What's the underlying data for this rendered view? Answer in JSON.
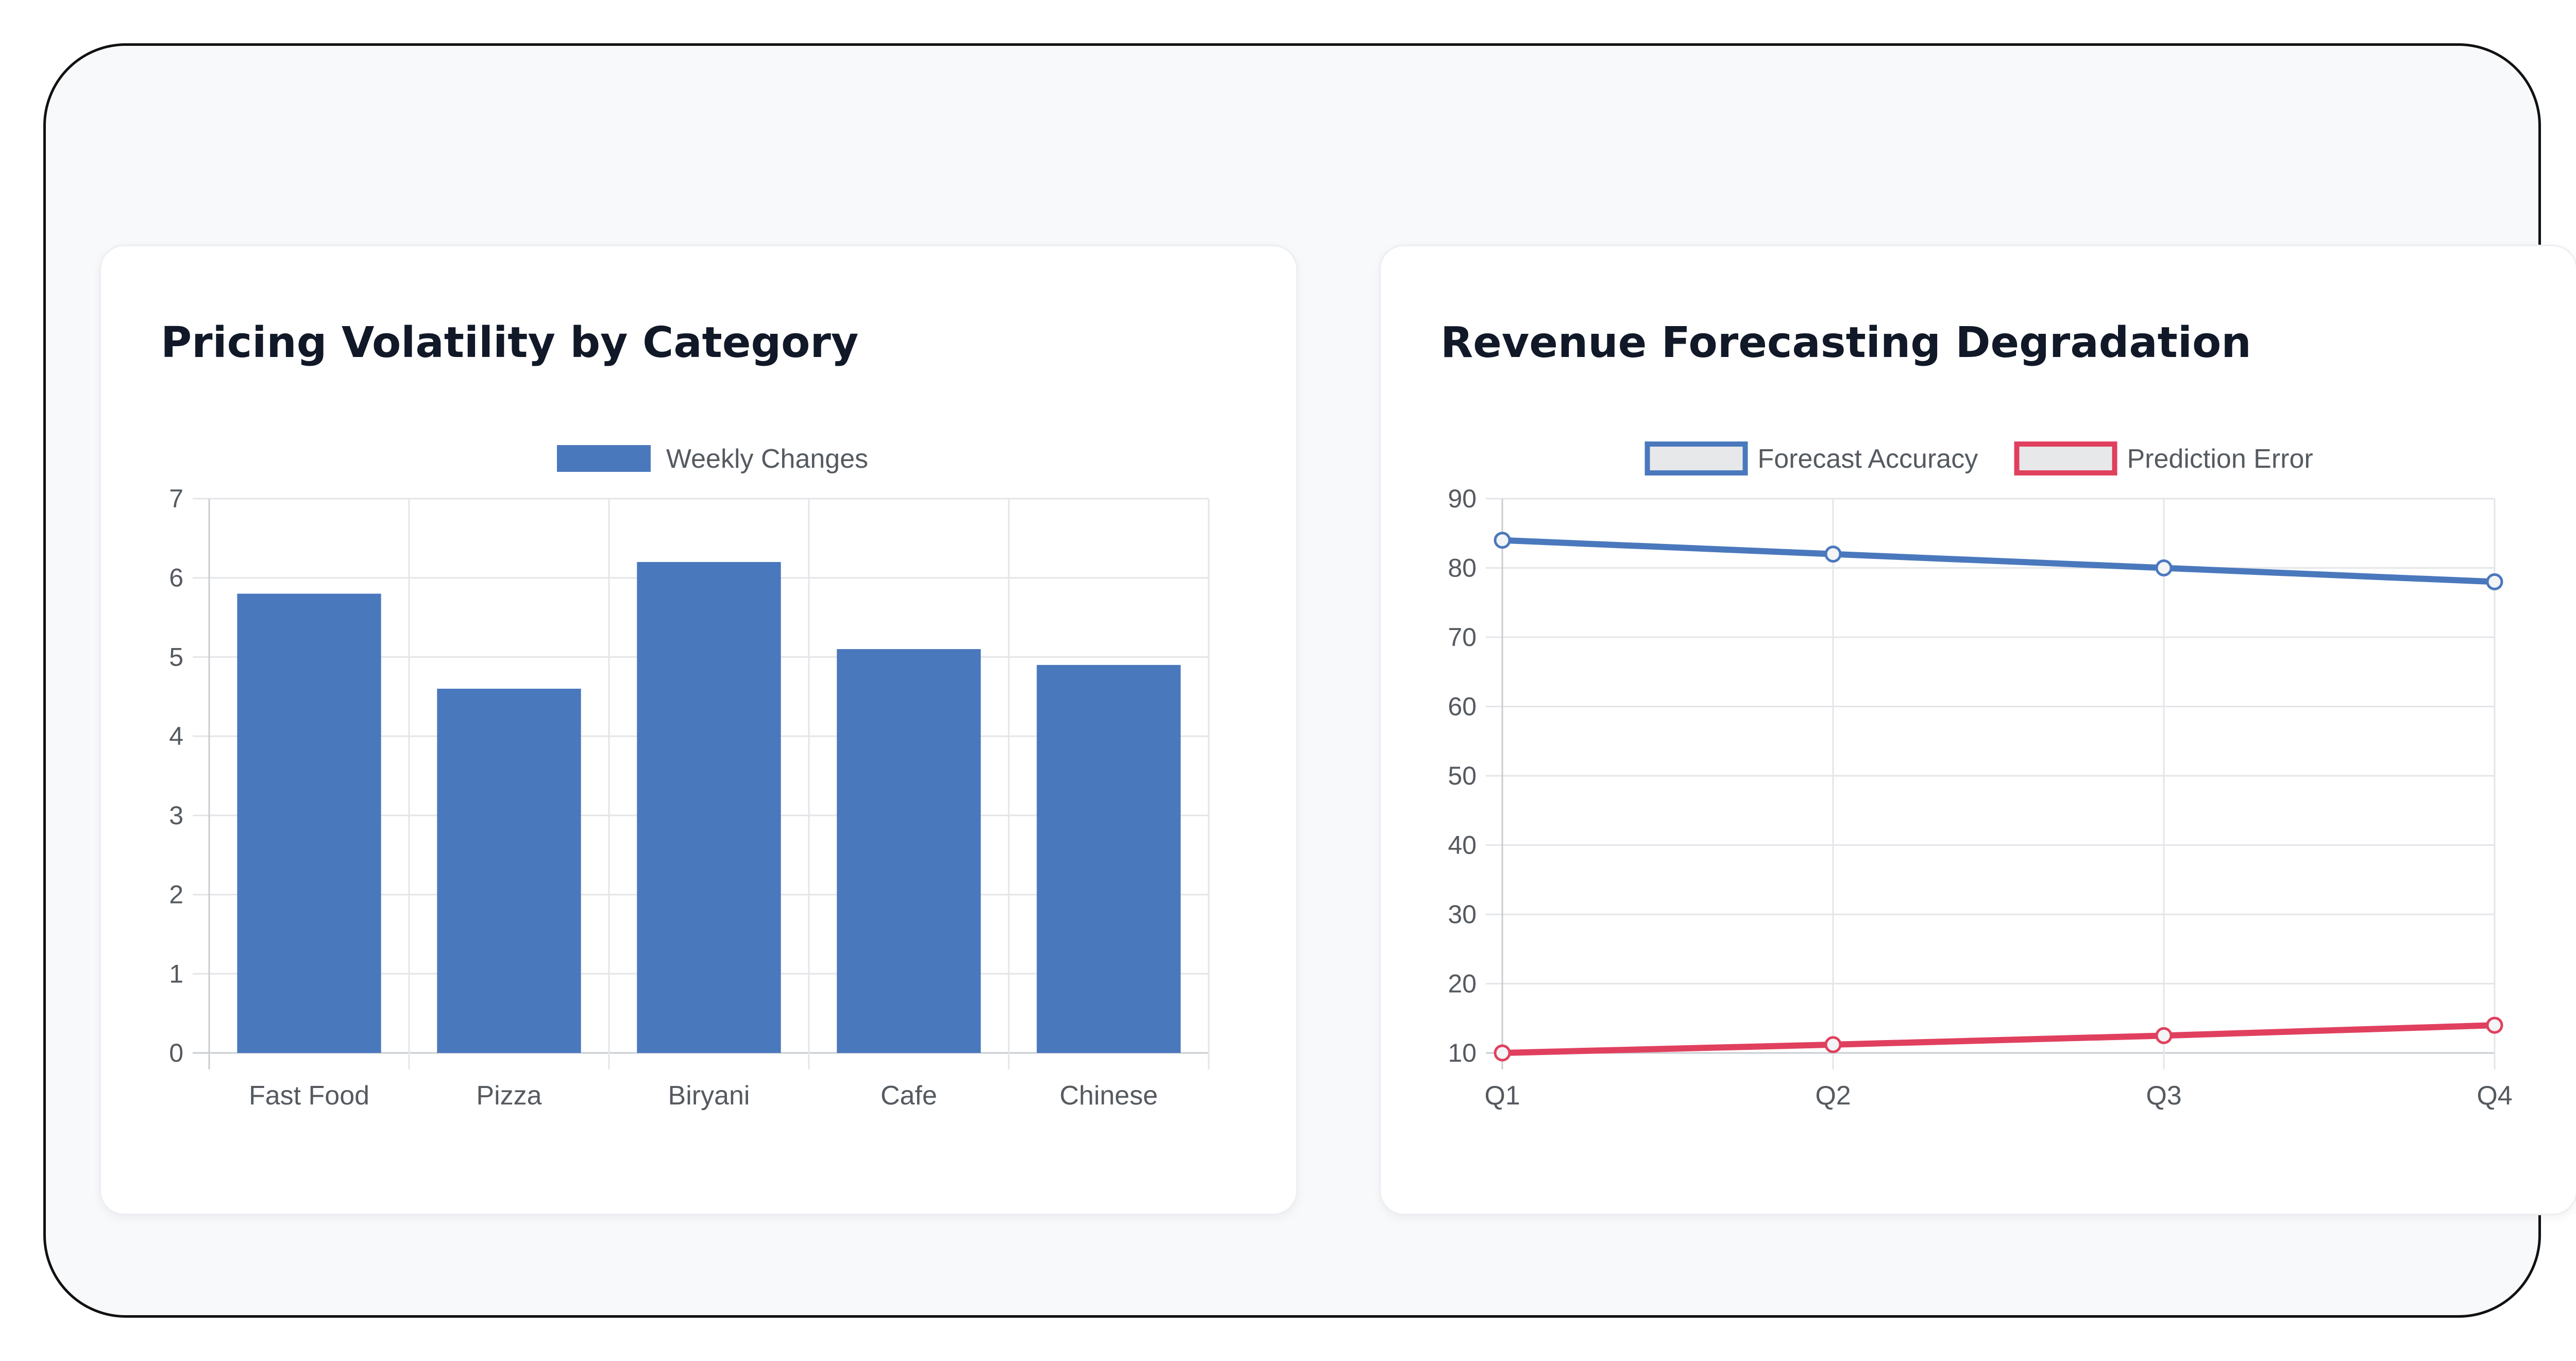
{
  "charts": {
    "left": {
      "title": "Pricing Volatility by Category"
    },
    "right": {
      "title": "Revenue Forecasting Degradation"
    }
  },
  "chart_data": [
    {
      "type": "bar",
      "title": "Pricing Volatility by Category",
      "categories": [
        "Fast Food",
        "Pizza",
        "Biryani",
        "Cafe",
        "Chinese"
      ],
      "series": [
        {
          "name": "Weekly Changes",
          "values": [
            5.8,
            4.6,
            6.2,
            5.1,
            4.9
          ],
          "color": "#4a78bd"
        }
      ],
      "yticks": [
        0,
        1,
        2,
        3,
        4,
        5,
        6,
        7
      ],
      "ylim": [
        0,
        7
      ],
      "legend": "top-center",
      "grid": true
    },
    {
      "type": "line",
      "title": "Revenue Forecasting Degradation",
      "categories": [
        "Q1",
        "Q2",
        "Q3",
        "Q4"
      ],
      "series": [
        {
          "name": "Forecast Accuracy",
          "values": [
            84,
            82,
            80,
            78
          ],
          "color": "#4a78bd"
        },
        {
          "name": "Prediction Error",
          "values": [
            10,
            11.2,
            12.5,
            14
          ],
          "color": "#e0405e"
        }
      ],
      "yticks": [
        10,
        20,
        30,
        40,
        50,
        60,
        70,
        80,
        90
      ],
      "ylim": [
        10,
        90
      ],
      "legend": "top-center",
      "grid": true
    }
  ]
}
